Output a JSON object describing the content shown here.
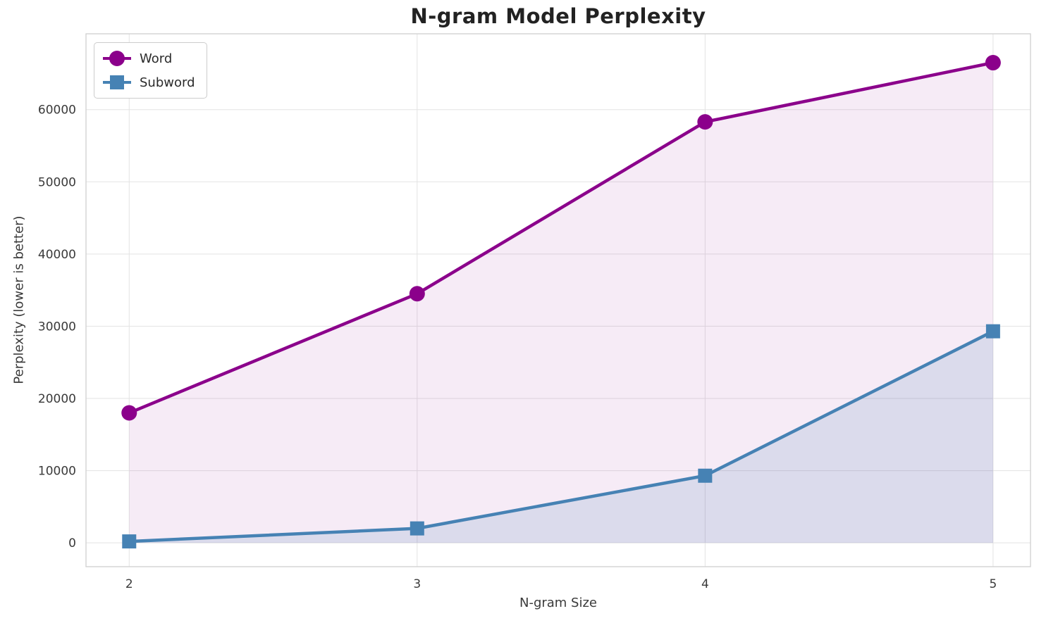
{
  "page": {
    "background": "#ffffff",
    "text_color": "#3a3a3a",
    "grid_color": "#e3e3e3",
    "border_color": "#d0d0d0"
  },
  "chart_data": {
    "type": "line",
    "title": "N-gram Model Perplexity",
    "xlabel": "N-gram Size",
    "ylabel": "Perplexity (lower is better)",
    "x": [
      2,
      3,
      4,
      5
    ],
    "x_ticks": [
      "2",
      "3",
      "4",
      "5"
    ],
    "y_ticks": [
      0,
      10000,
      20000,
      30000,
      40000,
      50000,
      60000
    ],
    "xlim": [
      1.85,
      5.13
    ],
    "ylim": [
      -3300,
      70500
    ],
    "grid": true,
    "legend_position": "upper left",
    "series": [
      {
        "name": "Word",
        "marker": "circle",
        "color": "#8B008B",
        "fill_opacity": 0.08,
        "values": [
          18000,
          34500,
          58300,
          66500
        ]
      },
      {
        "name": "Subword",
        "marker": "square",
        "color": "#4682B4",
        "fill_opacity": 0.15,
        "values": [
          200,
          2000,
          9300,
          29300
        ]
      }
    ]
  }
}
